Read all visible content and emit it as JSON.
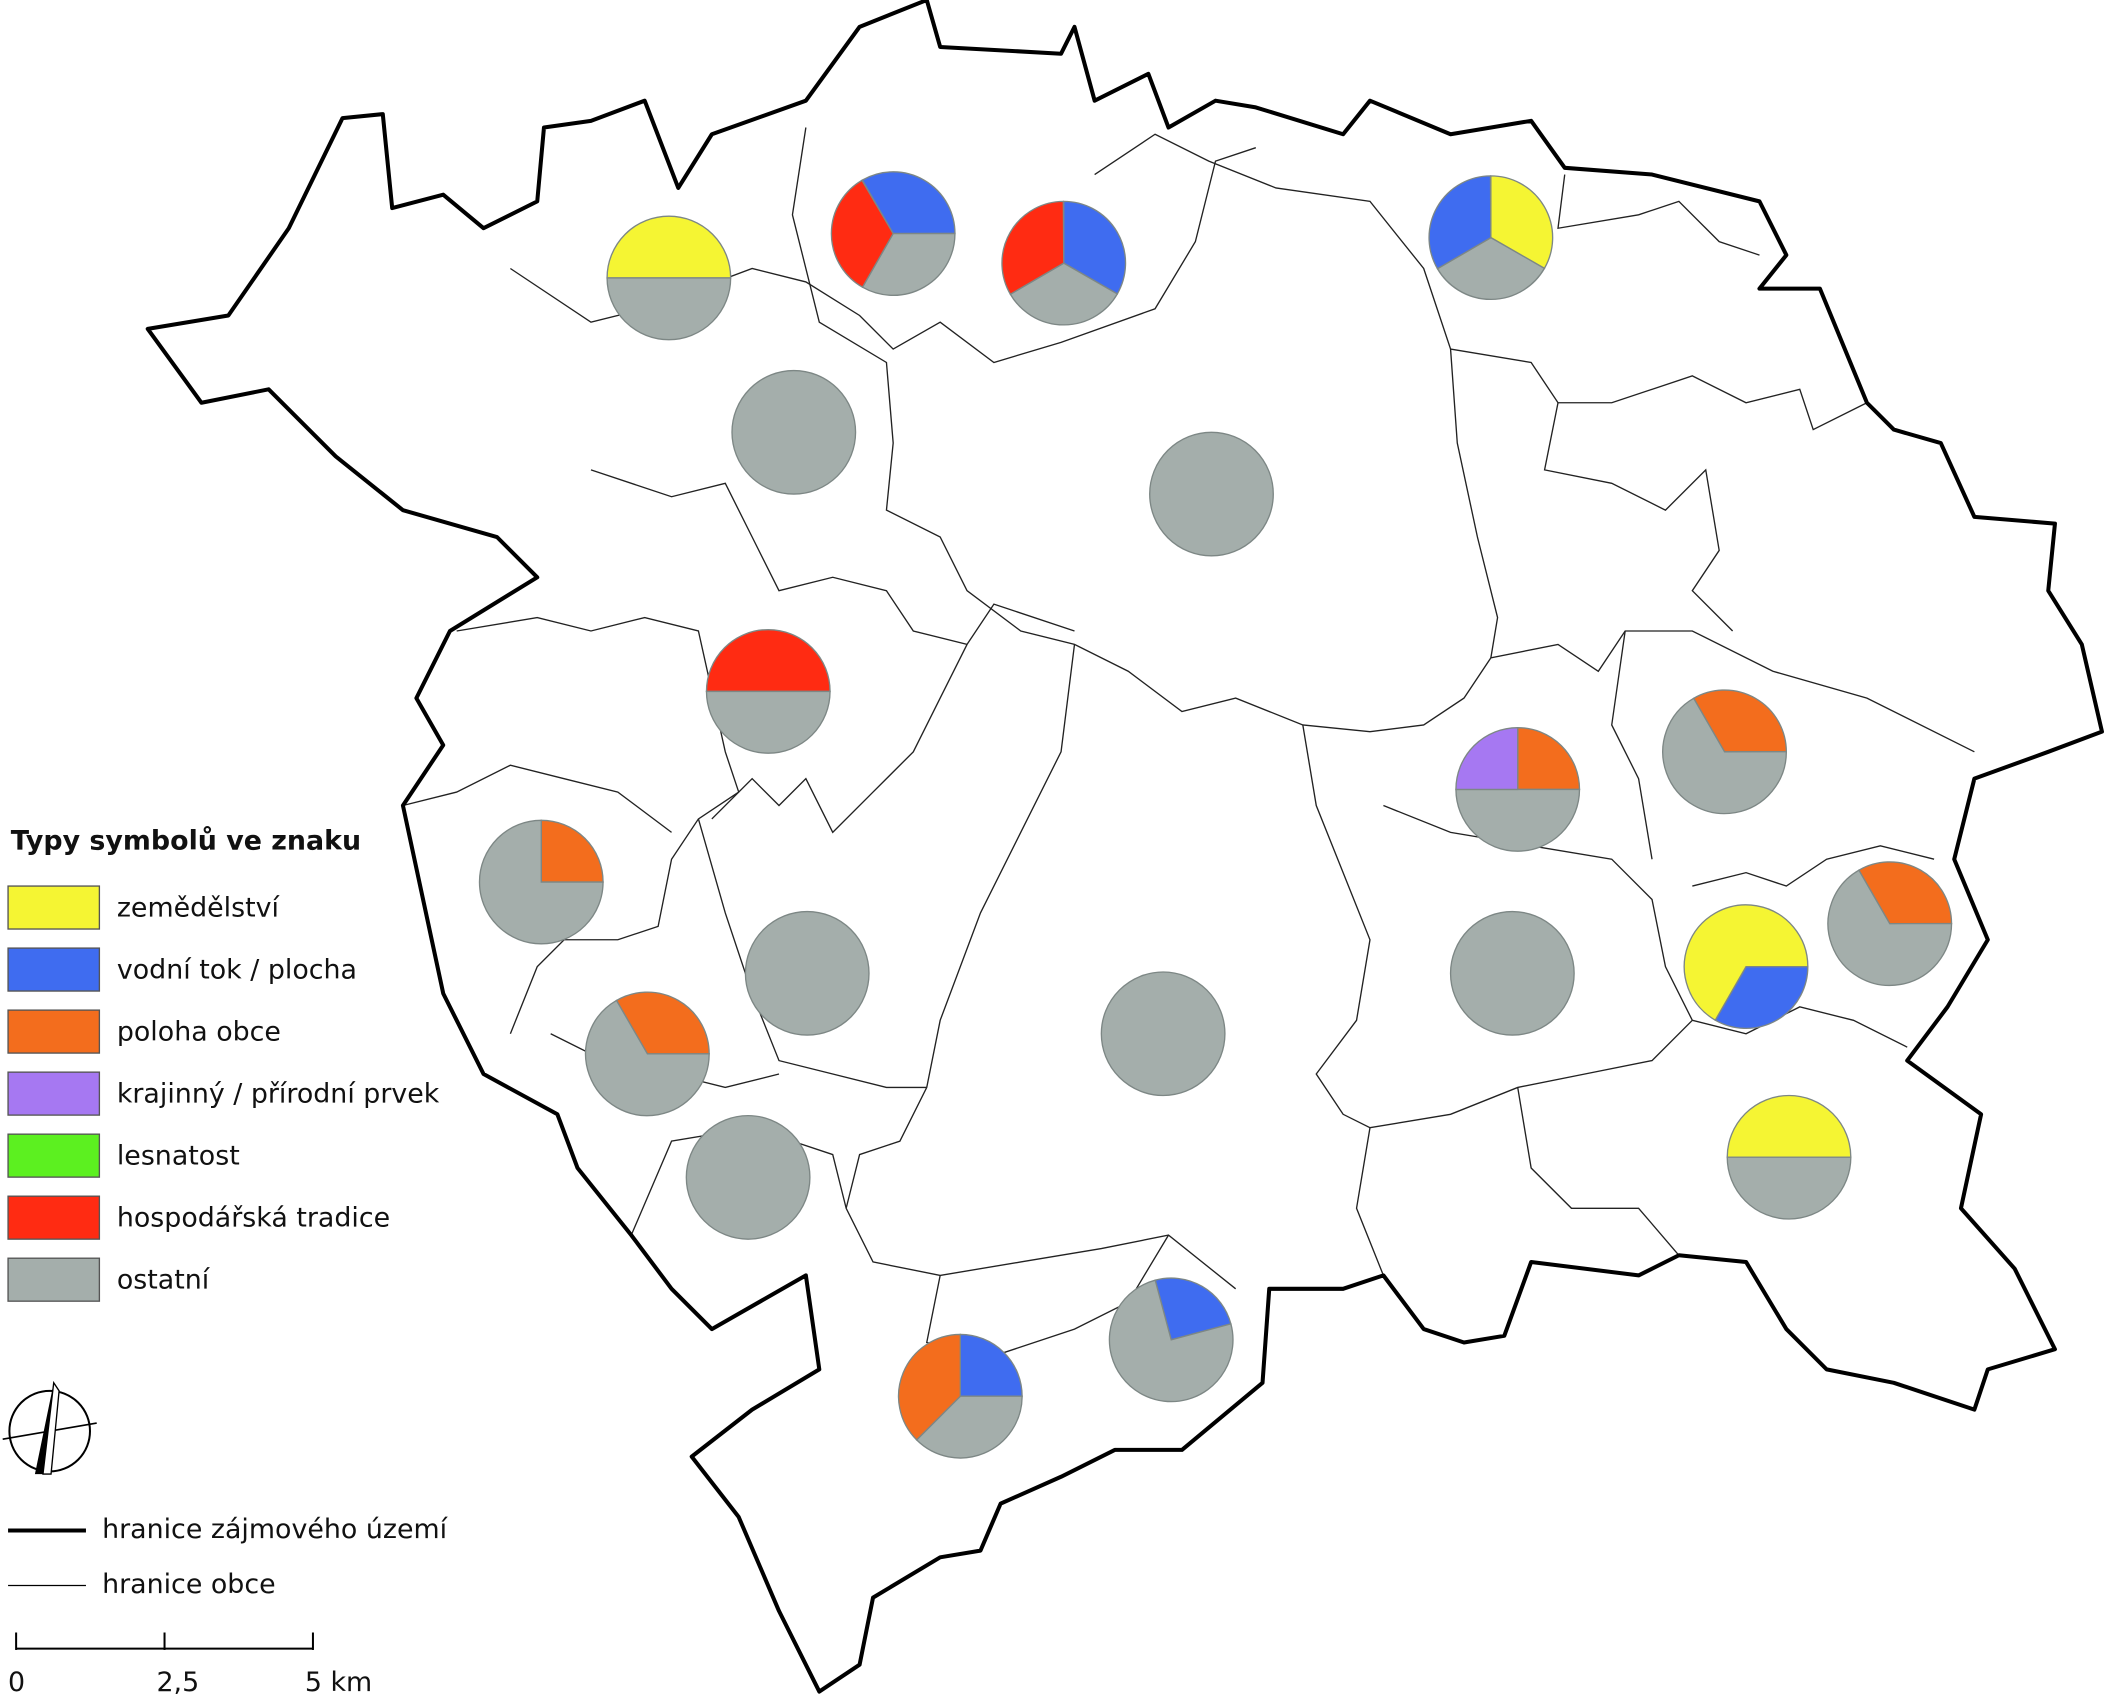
{
  "legend": {
    "title": "Typy symbolů ve znaku",
    "categories": [
      {
        "label": "zemědělství",
        "color": "#f5f533"
      },
      {
        "label": "vodní tok / plocha",
        "color": "#3f6cf0"
      },
      {
        "label": "poloha obce",
        "color": "#f36d1d"
      },
      {
        "label": "krajinný / přírodní prvek",
        "color": "#a678f2"
      },
      {
        "label": "lesnatost",
        "color": "#5cf020"
      },
      {
        "label": "hospodářská tradice",
        "color": "#ff2b12"
      },
      {
        "label": "ostatní",
        "color": "#a4aeab"
      }
    ]
  },
  "boundaries": [
    {
      "label": "hranice zájmového území"
    },
    {
      "label": "hranice obce"
    }
  ],
  "scale_bar": {
    "ticks": [
      {
        "value": 0,
        "label": "0"
      },
      {
        "value": 2.5,
        "label": "2,5"
      },
      {
        "value": 5,
        "label": "5 km"
      }
    ]
  },
  "pies": [
    {
      "values": [
        50,
        0,
        0,
        0,
        0,
        0,
        50
      ]
    },
    {
      "values": [
        0,
        33.3,
        0,
        0,
        0,
        33.3,
        33.3
      ]
    },
    {
      "values": [
        0,
        33.3,
        0,
        0,
        0,
        33.3,
        33.3
      ]
    },
    {
      "values": [
        33.3,
        33.3,
        0,
        0,
        0,
        0,
        33.3
      ]
    },
    {
      "values": [
        0,
        0,
        0,
        0,
        0,
        0,
        100
      ]
    },
    {
      "values": [
        0,
        0,
        0,
        0,
        0,
        0,
        100
      ]
    },
    {
      "values": [
        0,
        0,
        0,
        0,
        0,
        50,
        50
      ]
    },
    {
      "values": [
        0,
        0,
        25,
        0,
        0,
        0,
        75
      ]
    },
    {
      "values": [
        0,
        0,
        25,
        25,
        0,
        0,
        50
      ]
    },
    {
      "values": [
        0,
        0,
        33.3,
        0,
        0,
        0,
        66.7
      ]
    },
    {
      "values": [
        0,
        0,
        0,
        0,
        0,
        0,
        100
      ]
    },
    {
      "values": [
        0,
        0,
        0,
        0,
        0,
        0,
        100
      ]
    },
    {
      "values": [
        0,
        0,
        33.3,
        0,
        0,
        0,
        66.7
      ]
    },
    {
      "values": [
        0,
        0,
        0,
        0,
        0,
        0,
        100
      ]
    },
    {
      "values": [
        66.7,
        33.3,
        0,
        0,
        0,
        0,
        0
      ]
    },
    {
      "values": [
        0,
        0,
        33.3,
        0,
        0,
        0,
        66.7
      ]
    },
    {
      "values": [
        0,
        0,
        0,
        0,
        0,
        0,
        100
      ]
    },
    {
      "values": [
        50,
        0,
        0,
        0,
        0,
        0,
        50
      ]
    },
    {
      "values": [
        0,
        25,
        37.5,
        0,
        0,
        0,
        37.5
      ]
    },
    {
      "values": [
        0,
        25,
        0,
        0,
        0,
        0,
        75
      ]
    }
  ]
}
